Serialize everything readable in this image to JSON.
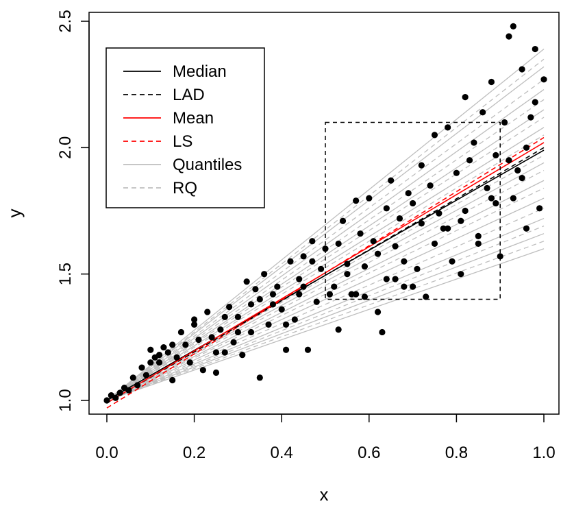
{
  "chart_data": {
    "type": "scatter",
    "xlabel": "x",
    "ylabel": "y",
    "xlim": [
      0.0,
      1.0
    ],
    "ylim": [
      1.0,
      2.5
    ],
    "x_ticks": [
      "0.0",
      "0.2",
      "0.4",
      "0.6",
      "0.8",
      "1.0"
    ],
    "y_ticks": [
      "1.0",
      "1.5",
      "2.0",
      "2.5"
    ],
    "legend": {
      "position": "top-left",
      "entries": [
        {
          "label": "Median",
          "color": "#000000",
          "dash": "solid"
        },
        {
          "label": "LAD",
          "color": "#000000",
          "dash": "dashed"
        },
        {
          "label": "Mean",
          "color": "#ff0000",
          "dash": "solid"
        },
        {
          "label": "LS",
          "color": "#ff0000",
          "dash": "dashed"
        },
        {
          "label": "Quantiles",
          "color": "#bebebe",
          "dash": "solid"
        },
        {
          "label": "RQ",
          "color": "#bebebe",
          "dash": "dashed"
        }
      ]
    },
    "box": {
      "x": [
        0.5,
        0.9
      ],
      "y": [
        1.4,
        2.1
      ]
    },
    "lines": [
      {
        "name": "Median",
        "color": "#000000",
        "dash": "solid",
        "x": [
          0,
          1
        ],
        "y": [
          1.0,
          1.99
        ]
      },
      {
        "name": "LAD",
        "color": "#000000",
        "dash": "dashed",
        "x": [
          0,
          1
        ],
        "y": [
          0.99,
          2.0
        ]
      },
      {
        "name": "Mean",
        "color": "#ff0000",
        "dash": "solid",
        "x": [
          0,
          1
        ],
        "y": [
          0.99,
          2.02
        ]
      },
      {
        "name": "LS",
        "color": "#ff0000",
        "dash": "dashed",
        "x": [
          0,
          1
        ],
        "y": [
          0.97,
          2.04
        ]
      }
    ],
    "quantile_lines": {
      "color": "#bebebe",
      "start": [
        0,
        1.0
      ],
      "solid_y_at_1": [
        1.6,
        1.66,
        1.72,
        1.8,
        1.87,
        1.94,
        2.08,
        2.15,
        2.23,
        2.32,
        2.39
      ],
      "dashed_y_at_1": [
        1.63,
        1.69,
        1.76,
        1.84,
        1.91,
        1.97,
        2.05,
        2.12,
        2.19,
        2.27,
        2.35
      ]
    },
    "points": {
      "x": [
        0.0,
        0.01,
        0.02,
        0.03,
        0.04,
        0.05,
        0.06,
        0.07,
        0.08,
        0.09,
        0.1,
        0.11,
        0.12,
        0.13,
        0.14,
        0.15,
        0.16,
        0.17,
        0.18,
        0.19,
        0.2,
        0.21,
        0.22,
        0.23,
        0.24,
        0.25,
        0.26,
        0.27,
        0.28,
        0.29,
        0.3,
        0.31,
        0.32,
        0.33,
        0.34,
        0.35,
        0.36,
        0.37,
        0.38,
        0.39,
        0.4,
        0.41,
        0.42,
        0.43,
        0.44,
        0.45,
        0.46,
        0.47,
        0.48,
        0.49,
        0.5,
        0.51,
        0.52,
        0.53,
        0.54,
        0.55,
        0.56,
        0.57,
        0.58,
        0.59,
        0.6,
        0.61,
        0.62,
        0.63,
        0.64,
        0.65,
        0.66,
        0.67,
        0.68,
        0.69,
        0.7,
        0.71,
        0.72,
        0.73,
        0.74,
        0.75,
        0.76,
        0.77,
        0.78,
        0.79,
        0.8,
        0.81,
        0.82,
        0.83,
        0.84,
        0.85,
        0.86,
        0.87,
        0.88,
        0.89,
        0.9,
        0.91,
        0.92,
        0.93,
        0.94,
        0.95,
        0.96,
        0.97,
        0.98,
        0.99,
        1.0,
        0.1,
        0.2,
        0.3,
        0.35,
        0.45,
        0.55,
        0.62,
        0.7,
        0.78,
        0.85,
        0.92,
        0.98,
        0.15,
        0.25,
        0.38,
        0.47,
        0.53,
        0.66,
        0.72,
        0.81,
        0.89,
        0.96,
        0.12,
        0.33,
        0.41,
        0.57,
        0.68,
        0.75,
        0.88,
        0.93,
        0.27,
        0.44,
        0.59,
        0.64,
        0.82,
        0.95
      ],
      "y": [
        1.0,
        1.02,
        1.01,
        1.03,
        1.05,
        1.04,
        1.09,
        1.06,
        1.13,
        1.1,
        1.2,
        1.17,
        1.15,
        1.21,
        1.19,
        1.08,
        1.17,
        1.27,
        1.22,
        1.15,
        1.32,
        1.24,
        1.12,
        1.35,
        1.25,
        1.11,
        1.28,
        1.19,
        1.37,
        1.23,
        1.33,
        1.18,
        1.47,
        1.27,
        1.44,
        1.09,
        1.5,
        1.3,
        1.38,
        1.45,
        1.36,
        1.2,
        1.55,
        1.32,
        1.48,
        1.57,
        1.2,
        1.63,
        1.39,
        1.52,
        1.6,
        1.42,
        1.45,
        1.28,
        1.71,
        1.54,
        1.42,
        1.79,
        1.66,
        1.41,
        1.8,
        1.63,
        1.58,
        1.27,
        1.76,
        1.87,
        1.61,
        1.72,
        1.45,
        1.82,
        1.78,
        1.52,
        1.93,
        1.41,
        1.85,
        2.05,
        1.74,
        1.68,
        2.08,
        1.55,
        1.9,
        1.71,
        2.2,
        1.95,
        2.02,
        1.65,
        2.14,
        1.84,
        2.26,
        1.97,
        1.57,
        2.1,
        2.44,
        2.48,
        1.91,
        2.31,
        1.68,
        2.12,
        2.39,
        1.76,
        2.27,
        1.15,
        1.3,
        1.27,
        1.4,
        1.45,
        1.5,
        1.35,
        1.45,
        1.68,
        1.62,
        1.95,
        2.18,
        1.22,
        1.19,
        1.42,
        1.55,
        1.62,
        1.48,
        1.7,
        1.5,
        1.78,
        2.0,
        1.18,
        1.38,
        1.3,
        1.42,
        1.55,
        1.62,
        1.8,
        1.8,
        1.33,
        1.42,
        1.53,
        1.48,
        1.75,
        1.88
      ]
    }
  }
}
